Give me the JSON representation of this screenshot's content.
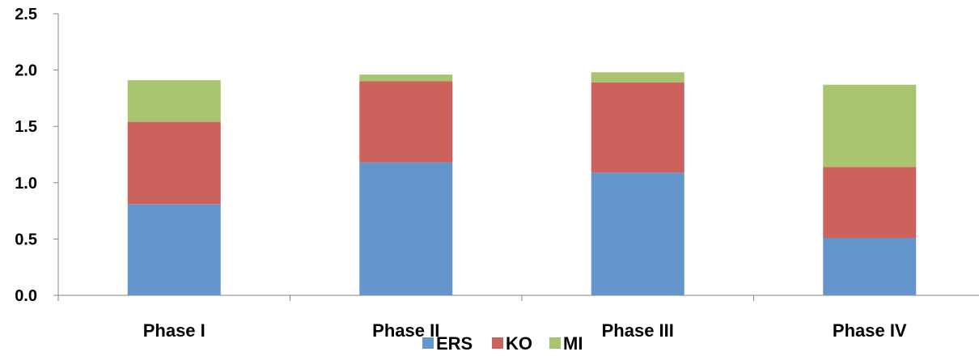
{
  "chart_data": {
    "type": "bar",
    "stacked": true,
    "categories": [
      "Phase I",
      "Phase II",
      "Phase III",
      "Phase IV"
    ],
    "series": [
      {
        "name": "ERS",
        "color": "#6495CB",
        "values": [
          0.81,
          1.18,
          1.09,
          0.51
        ]
      },
      {
        "name": "KO",
        "color": "#CC625B",
        "values": [
          0.73,
          0.72,
          0.8,
          0.63
        ]
      },
      {
        "name": "MI",
        "color": "#A8C46E",
        "values": [
          0.37,
          0.06,
          0.09,
          0.73
        ]
      }
    ],
    "ylim": [
      0,
      2.5
    ],
    "yticks": [
      "0.0",
      "0.5",
      "1.0",
      "1.5",
      "2.0",
      "2.5"
    ],
    "grid": false,
    "legend_position": "bottom"
  }
}
